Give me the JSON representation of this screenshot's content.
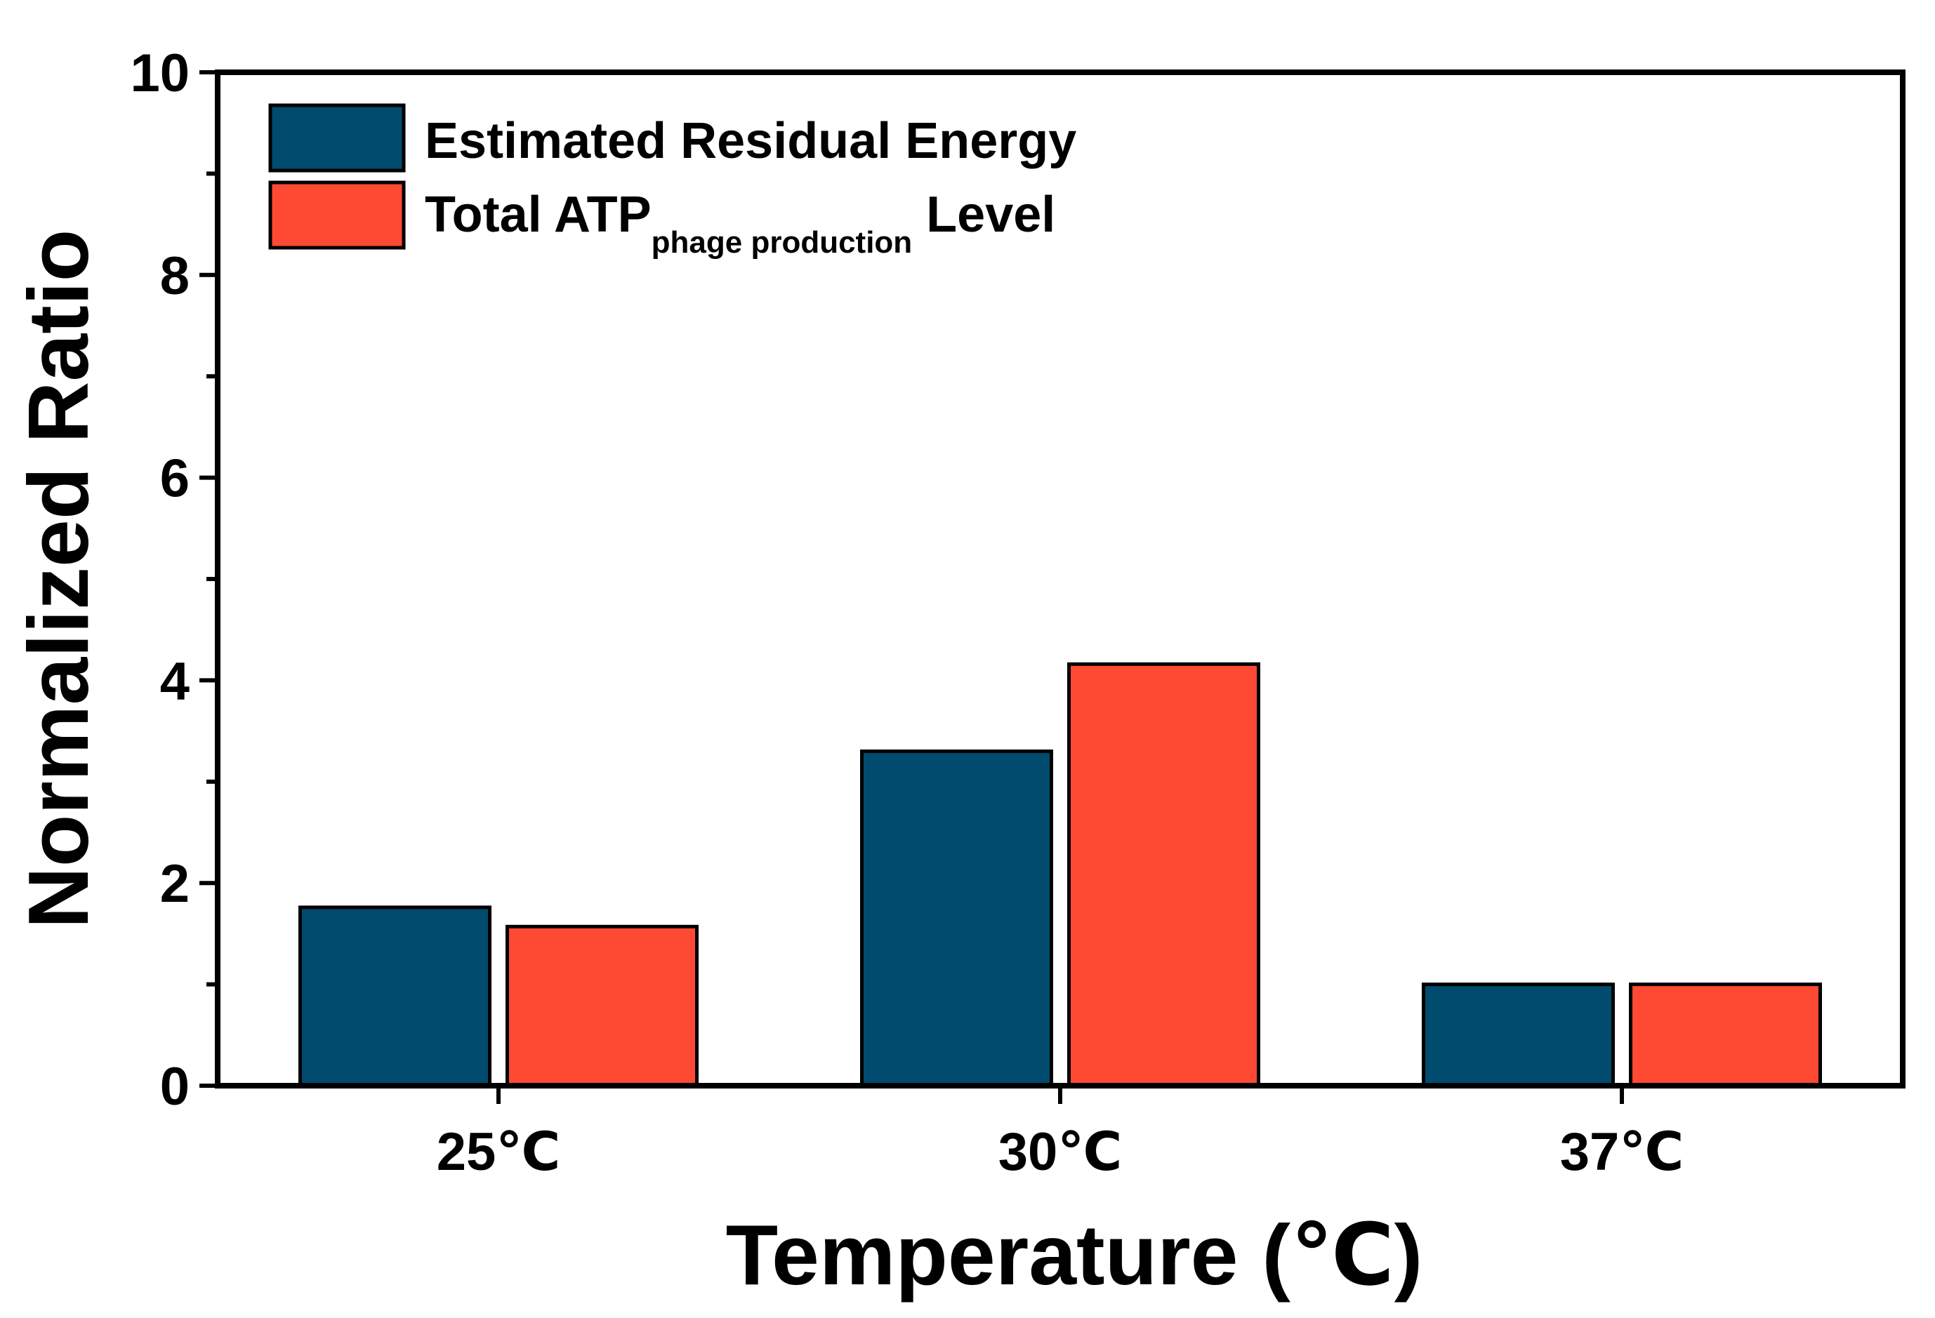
{
  "chart_data": {
    "type": "bar",
    "categories": [
      "25℃",
      "30℃",
      "37℃"
    ],
    "series": [
      {
        "name": "Estimated Residual Energy",
        "values": [
          1.76,
          3.3,
          1.0
        ],
        "color": "#004b6e"
      },
      {
        "name": "Total ATP",
        "name_subscript": "phage production",
        "name_suffix": " Level",
        "values": [
          1.57,
          4.16,
          1.0
        ],
        "color": "#ff4a33"
      }
    ],
    "xlabel": "Temperature (℃)",
    "ylabel": "Normalized Ratio",
    "ylim": [
      0,
      10
    ],
    "yticks": [
      0,
      2,
      4,
      6,
      8,
      10
    ],
    "grid": false,
    "legend_position": "top-left"
  }
}
